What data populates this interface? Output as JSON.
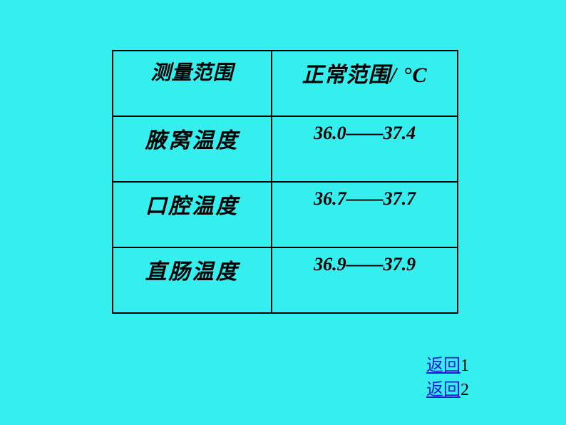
{
  "table": {
    "background": "#35eeee",
    "border_color": "#000000",
    "header": {
      "left": "测量范围",
      "right": "正常范围/ °C"
    },
    "rows": [
      {
        "label": "腋窝温度",
        "value": "36.0——37.4"
      },
      {
        "label": "口腔温度",
        "value": "36.7——37.7"
      },
      {
        "label": "直肠温度",
        "value": "36.9——37.9"
      }
    ]
  },
  "links": {
    "l1_text": "返回",
    "l1_num": "1",
    "l2_text": "返回",
    "l2_num": "2",
    "link_color": "#1c1cd6"
  }
}
